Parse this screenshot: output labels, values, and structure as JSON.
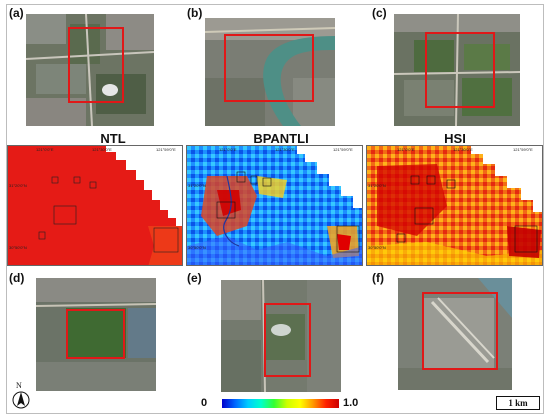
{
  "panel_labels": {
    "a": "(a)",
    "b": "(b)",
    "c": "(c)",
    "d": "(d)",
    "e": "(e)",
    "f": "(f)"
  },
  "map_titles": {
    "ntl": "NTL",
    "bpantli": "BPANTLI",
    "hsi": "HSI"
  },
  "coord_labels": {
    "lon_1": "121°0'0\"E",
    "lon_2": "121°30'0\"E",
    "lon_3": "121°59'0\"E",
    "lat_1": "31°20'0\"N",
    "lat_2": "30°50'0\"N"
  },
  "colorbar": {
    "min": "0",
    "max": "1.0"
  },
  "scale_bar": "1 km",
  "north_arrow": "N",
  "colors": {
    "frame_red": "#e01818",
    "high": "#e00000",
    "low": "#0000cc"
  }
}
